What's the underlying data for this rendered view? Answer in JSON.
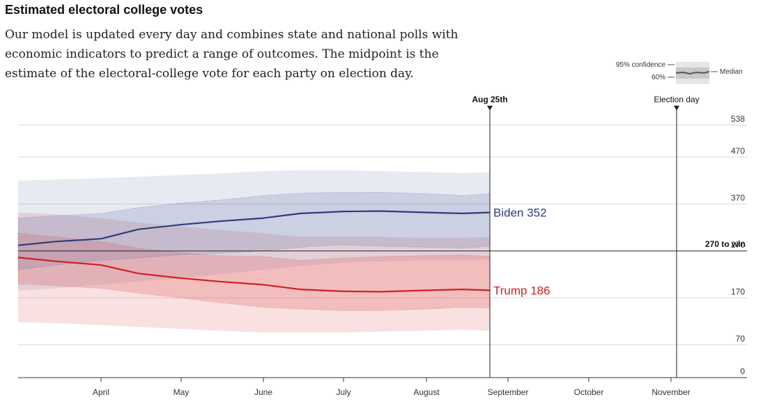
{
  "title": "Estimated electoral college votes",
  "subtitle": "Our model is updated every day and combines state and national polls with economic indicators to predict a range of outcomes. The midpoint is the estimate of the electoral-college vote for each party on election day.",
  "legend": {
    "ci95": "95% confidence",
    "ci60": "60%",
    "median": "Median"
  },
  "markers": {
    "today": "Aug 25th",
    "election": "Election day",
    "threshold": "270 to win"
  },
  "colors": {
    "biden": "#2e3d7a",
    "trump": "#d31e1e",
    "biden_band": "#5a6aa6",
    "trump_band": "#e05a5a"
  },
  "chart_data": {
    "type": "line",
    "x_axis": {
      "labels": [
        "April",
        "May",
        "June",
        "July",
        "August",
        "September",
        "October",
        "November"
      ]
    },
    "y_axis": {
      "range": [
        0,
        538
      ],
      "ticks": [
        0,
        70,
        170,
        270,
        370,
        470,
        538
      ]
    },
    "threshold": 270,
    "x_dates": [
      "Mar 1",
      "Mar 15",
      "Apr 1",
      "Apr 15",
      "May 1",
      "May 15",
      "Jun 1",
      "Jun 15",
      "Jul 1",
      "Jul 15",
      "Aug 1",
      "Aug 15",
      "Aug 25"
    ],
    "series": [
      {
        "name": "Biden",
        "label": "Biden 352",
        "median": [
          282,
          290,
          296,
          316,
          326,
          333,
          340,
          350,
          354,
          355,
          352,
          350,
          352
        ],
        "ci60_low": [
          230,
          240,
          250,
          255,
          262,
          265,
          270,
          278,
          283,
          280,
          278,
          276,
          280
        ],
        "ci60_high": [
          340,
          345,
          350,
          362,
          372,
          378,
          388,
          393,
          395,
          395,
          392,
          388,
          392
        ],
        "ci95_low": [
          185,
          190,
          198,
          205,
          212,
          220,
          230,
          238,
          245,
          248,
          250,
          250,
          252
        ],
        "ci95_high": [
          420,
          422,
          425,
          428,
          432,
          435,
          440,
          442,
          442,
          440,
          438,
          436,
          438
        ]
      },
      {
        "name": "Trump",
        "label": "Trump 186",
        "median": [
          256,
          248,
          240,
          222,
          212,
          205,
          198,
          188,
          184,
          183,
          186,
          188,
          186
        ],
        "ci60_low": [
          200,
          196,
          190,
          180,
          170,
          160,
          150,
          146,
          143,
          143,
          146,
          150,
          148
        ],
        "ci60_high": [
          308,
          300,
          290,
          276,
          266,
          260,
          258,
          250,
          255,
          258,
          260,
          262,
          258
        ],
        "ci95_low": [
          118,
          116,
          112,
          108,
          104,
          100,
          96,
          96,
          96,
          98,
          100,
          102,
          100
        ],
        "ci95_high": [
          352,
          348,
          340,
          330,
          322,
          315,
          308,
          300,
          300,
          300,
          298,
          298,
          300
        ]
      }
    ]
  }
}
